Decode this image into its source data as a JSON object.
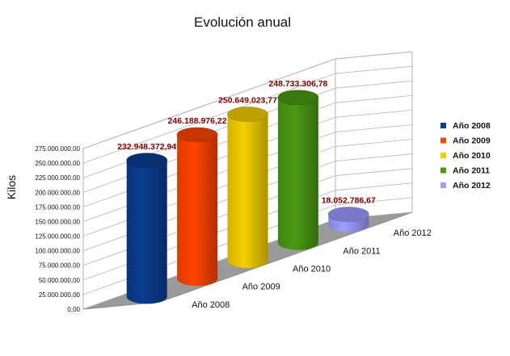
{
  "chart_data": {
    "type": "bar",
    "title": "Evolución anual",
    "ylabel": "Kilos",
    "xlabel": "",
    "categories": [
      "Año 2008",
      "Año 2009",
      "Año 2010",
      "Año 2011",
      "Año 2012"
    ],
    "values": [
      232948372.94,
      246188976.22,
      250649023.77,
      248733306.78,
      18052786.67
    ],
    "value_labels": [
      "232.948.372,94",
      "246.188.976,22",
      "250.649.023,77",
      "248.733.306,78",
      "18.052.786,67"
    ],
    "series": [
      {
        "name": "Año 2008",
        "color": "#0a3d8f"
      },
      {
        "name": "Año 2009",
        "color": "#ff4500"
      },
      {
        "name": "Año 2010",
        "color": "#f5d000"
      },
      {
        "name": "Año 2011",
        "color": "#4c9a14"
      },
      {
        "name": "Año 2012",
        "color": "#9e9cff"
      }
    ],
    "ylim": [
      0,
      275000000
    ],
    "yticks": [
      0,
      25000000,
      50000000,
      75000000,
      100000000,
      125000000,
      150000000,
      175000000,
      200000000,
      225000000,
      250000000,
      275000000
    ],
    "ytick_labels": [
      "0,00",
      "25.000.000,00",
      "50.000.000,00",
      "75.000.000,00",
      "100.000.000,00",
      "125.000.000,00",
      "150.000.000,00",
      "175.000.000,00",
      "200.000.000,00",
      "225.000.000,00",
      "250.000.000,00",
      "275.000.000,00"
    ],
    "grid": true,
    "legend": "right",
    "style": "3d-cylinder"
  }
}
